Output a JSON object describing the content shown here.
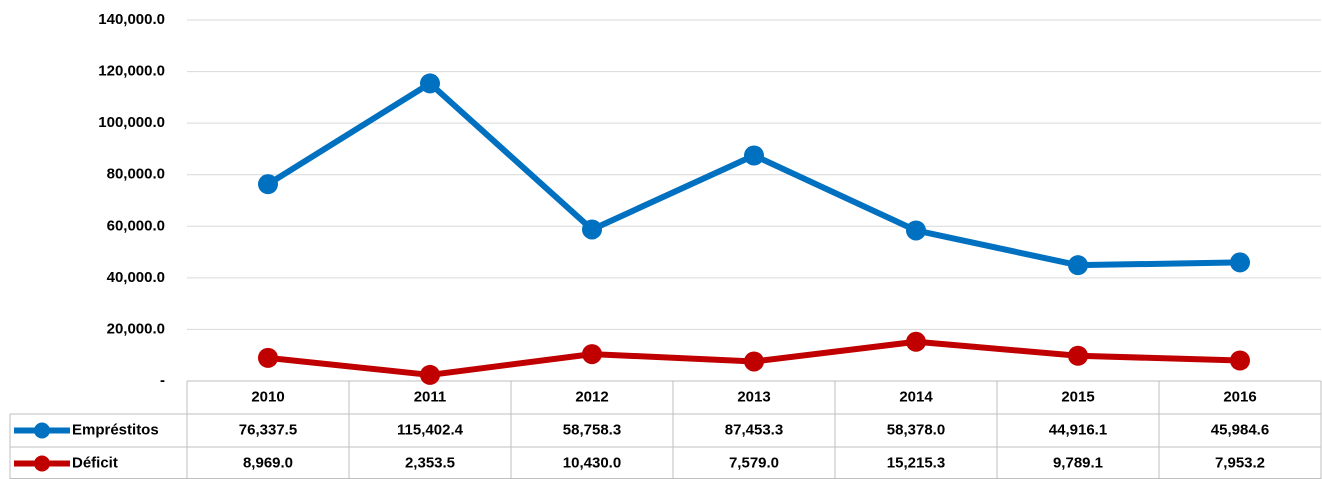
{
  "chart_data": {
    "type": "line",
    "categories": [
      "2010",
      "2011",
      "2012",
      "2013",
      "2014",
      "2015",
      "2016"
    ],
    "series": [
      {
        "name": "Empréstitos",
        "color": "#0070c0",
        "values": [
          76337.5,
          115402.4,
          58758.3,
          87453.3,
          58378.0,
          44916.1,
          45984.6
        ],
        "value_labels": [
          "76,337.5",
          "115,402.4",
          "58,758.3",
          "87,453.3",
          "58,378.0",
          "44,916.1",
          "45,984.6"
        ]
      },
      {
        "name": "Déficit",
        "color": "#c00000",
        "values": [
          8969.0,
          2353.5,
          10430.0,
          7579.0,
          15215.3,
          9789.1,
          7953.2
        ],
        "value_labels": [
          "8,969.0",
          "2,353.5",
          "10,430.0",
          "7,579.0",
          "15,215.3",
          "9,789.1",
          "7,953.2"
        ]
      }
    ],
    "ylim": [
      0,
      140000
    ],
    "yticks": [
      {
        "value": 0,
        "label": "-"
      },
      {
        "value": 20000,
        "label": "20,000.0"
      },
      {
        "value": 40000,
        "label": "40,000.0"
      },
      {
        "value": 60000,
        "label": "60,000.0"
      },
      {
        "value": 80000,
        "label": "80,000.0"
      },
      {
        "value": 100000,
        "label": "100,000.0"
      },
      {
        "value": 120000,
        "label": "120,000.0"
      },
      {
        "value": 140000,
        "label": "140,000.0"
      }
    ],
    "grid": true
  }
}
